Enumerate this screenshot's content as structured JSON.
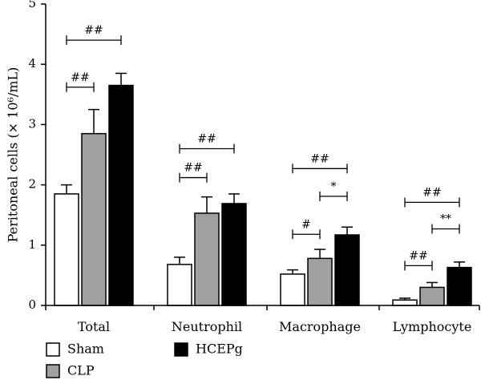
{
  "chart_data": {
    "type": "bar",
    "ylabel": "Peritoneal cells (× 10⁶/mL)",
    "ylim": [
      0,
      5
    ],
    "yticks": [
      0,
      1,
      2,
      3,
      4,
      5
    ],
    "categories": [
      "Total",
      "Neutrophil",
      "Macrophage",
      "Lymphocyte"
    ],
    "series": [
      {
        "name": "Sham",
        "color": "#ffffff",
        "values": [
          1.85,
          0.68,
          0.52,
          0.09
        ],
        "errors": [
          0.15,
          0.12,
          0.07,
          0.03
        ]
      },
      {
        "name": "CLP",
        "color": "#a0a0a0",
        "values": [
          2.85,
          1.53,
          0.78,
          0.3
        ],
        "errors": [
          0.4,
          0.27,
          0.15,
          0.08
        ]
      },
      {
        "name": "HCEPg",
        "color": "#000000",
        "values": [
          3.65,
          1.69,
          1.17,
          0.63
        ],
        "errors": [
          0.2,
          0.16,
          0.13,
          0.09
        ]
      }
    ],
    "significance": [
      {
        "category": 0,
        "from": 0,
        "to": 1,
        "label": "##",
        "y": 3.62
      },
      {
        "category": 0,
        "from": 0,
        "to": 2,
        "label": "##",
        "y": 4.4
      },
      {
        "category": 1,
        "from": 0,
        "to": 1,
        "label": "##",
        "y": 2.12
      },
      {
        "category": 1,
        "from": 0,
        "to": 2,
        "label": "##",
        "y": 2.6
      },
      {
        "category": 2,
        "from": 0,
        "to": 1,
        "label": "#",
        "y": 1.18
      },
      {
        "category": 2,
        "from": 1,
        "to": 2,
        "label": "*",
        "y": 1.81
      },
      {
        "category": 2,
        "from": 0,
        "to": 2,
        "label": "##",
        "y": 2.27
      },
      {
        "category": 3,
        "from": 0,
        "to": 1,
        "label": "##",
        "y": 0.66
      },
      {
        "category": 3,
        "from": 1,
        "to": 2,
        "label": "**",
        "y": 1.27
      },
      {
        "category": 3,
        "from": 0,
        "to": 2,
        "label": "##",
        "y": 1.71
      }
    ]
  }
}
